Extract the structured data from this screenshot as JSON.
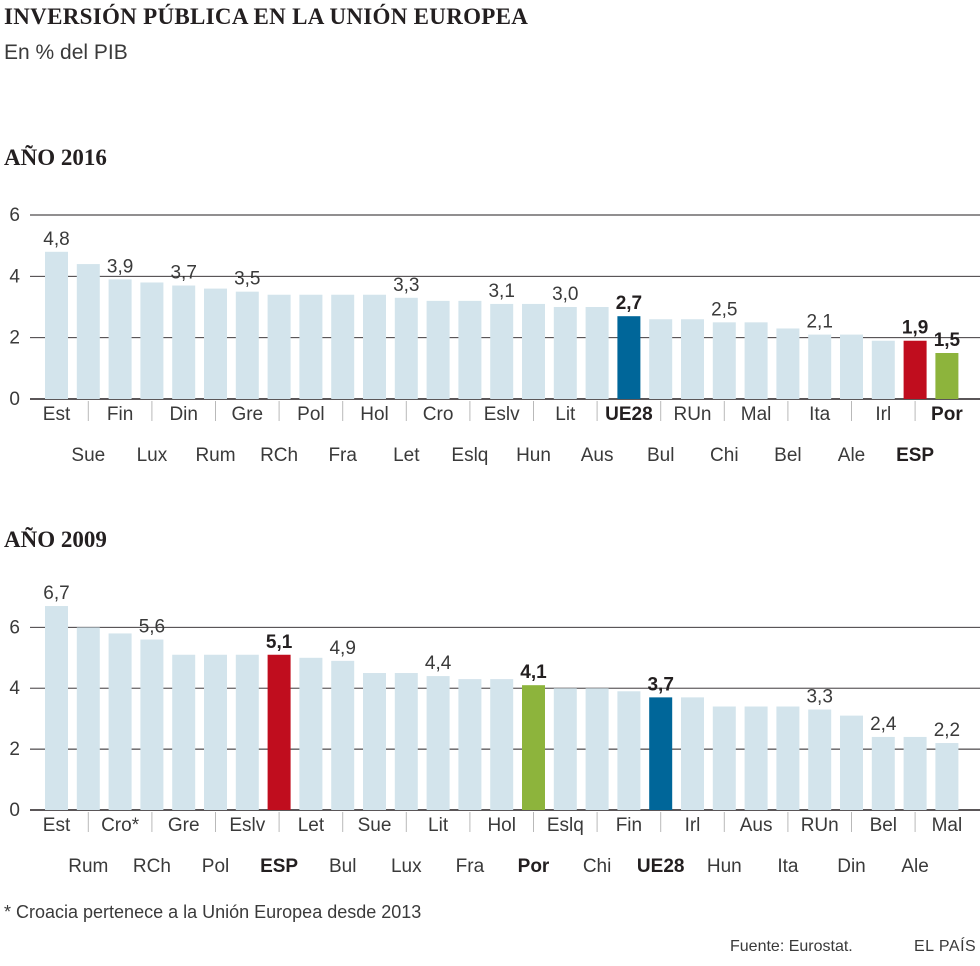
{
  "title": "INVERSIÓN PÚBLICA EN LA UNIÓN EUROPEA",
  "subtitle": "En % del PIB",
  "footnote": "* Croacia pertenece a la Unión Europea desde 2013",
  "source": "Fuente: Eurostat.",
  "brand": "EL PAÍS",
  "colors": {
    "default_bar": "#d3e4ec",
    "esp": "#c00d1e",
    "por": "#8db43c",
    "ue28": "#006699",
    "grid": "#231f20",
    "text": "#231f20",
    "label": "#3a3a3a"
  },
  "chart_data": [
    {
      "type": "bar",
      "title": "AÑO 2016",
      "categories": [
        "Est",
        "Sue",
        "Fin",
        "Lux",
        "Din",
        "Rum",
        "Gre",
        "RCh",
        "Pol",
        "Fra",
        "Hol",
        "Let",
        "Cro",
        "Eslq",
        "Eslv",
        "Hun",
        "Lit",
        "Aus",
        "UE28",
        "Bul",
        "RUn",
        "Chi",
        "Mal",
        "Bel",
        "Ita",
        "Ale",
        "Irl",
        "ESP",
        "Por"
      ],
      "values": [
        4.8,
        4.4,
        3.9,
        3.8,
        3.7,
        3.6,
        3.5,
        3.4,
        3.4,
        3.4,
        3.4,
        3.3,
        3.2,
        3.2,
        3.1,
        3.1,
        3.0,
        3.0,
        2.7,
        2.6,
        2.6,
        2.5,
        2.5,
        2.3,
        2.1,
        2.1,
        1.9,
        1.9,
        1.5
      ],
      "value_labels": [
        "4,8",
        "",
        "3,9",
        "",
        "3,7",
        "",
        "3,5",
        "",
        "",
        "",
        "",
        "3,3",
        "",
        "",
        "3,1",
        "",
        "3,0",
        "",
        "2,7",
        "",
        "",
        "2,5",
        "",
        "",
        "2,1",
        "",
        "",
        "1,9",
        "1,5"
      ],
      "highlight": {
        "UE28": "ue28",
        "ESP": "esp",
        "Por": "por"
      },
      "bold_labels": [
        "UE28",
        "ESP",
        "Por"
      ],
      "yticks": [
        "0",
        "2",
        "4",
        "6"
      ],
      "ylim": [
        0,
        6
      ],
      "xlabel": "",
      "ylabel": ""
    },
    {
      "type": "bar",
      "title": "AÑO 2009",
      "categories": [
        "Est",
        "Rum",
        "Cro*",
        "RCh",
        "Gre",
        "Pol",
        "Eslv",
        "ESP",
        "Let",
        "Bul",
        "Sue",
        "Lux",
        "Lit",
        "Fra",
        "Hol",
        "Por",
        "Eslq",
        "Chi",
        "Fin",
        "UE28",
        "Irl",
        "Hun",
        "Aus",
        "Ita",
        "RUn",
        "Din",
        "Bel",
        "Ale",
        "Mal"
      ],
      "values": [
        6.7,
        6.0,
        5.8,
        5.6,
        5.1,
        5.1,
        5.1,
        5.1,
        5.0,
        4.9,
        4.5,
        4.5,
        4.4,
        4.3,
        4.3,
        4.1,
        4.0,
        4.0,
        3.9,
        3.7,
        3.7,
        3.4,
        3.4,
        3.4,
        3.3,
        3.1,
        2.4,
        2.4,
        2.2
      ],
      "value_labels": [
        "6,7",
        "",
        "",
        "5,6",
        "",
        "",
        "",
        "5,1",
        "",
        "4,9",
        "",
        "",
        "4,4",
        "",
        "",
        "4,1",
        "",
        "",
        "",
        "3,7",
        "",
        "",
        "",
        "",
        "3,3",
        "",
        "2,4",
        "",
        "2,2"
      ],
      "highlight": {
        "UE28": "ue28",
        "ESP": "esp",
        "Por": "por"
      },
      "bold_labels": [
        "UE28",
        "ESP",
        "Por"
      ],
      "yticks": [
        "0",
        "2",
        "4",
        "6"
      ],
      "ylim": [
        0,
        6.8
      ],
      "xlabel": "",
      "ylabel": ""
    }
  ]
}
